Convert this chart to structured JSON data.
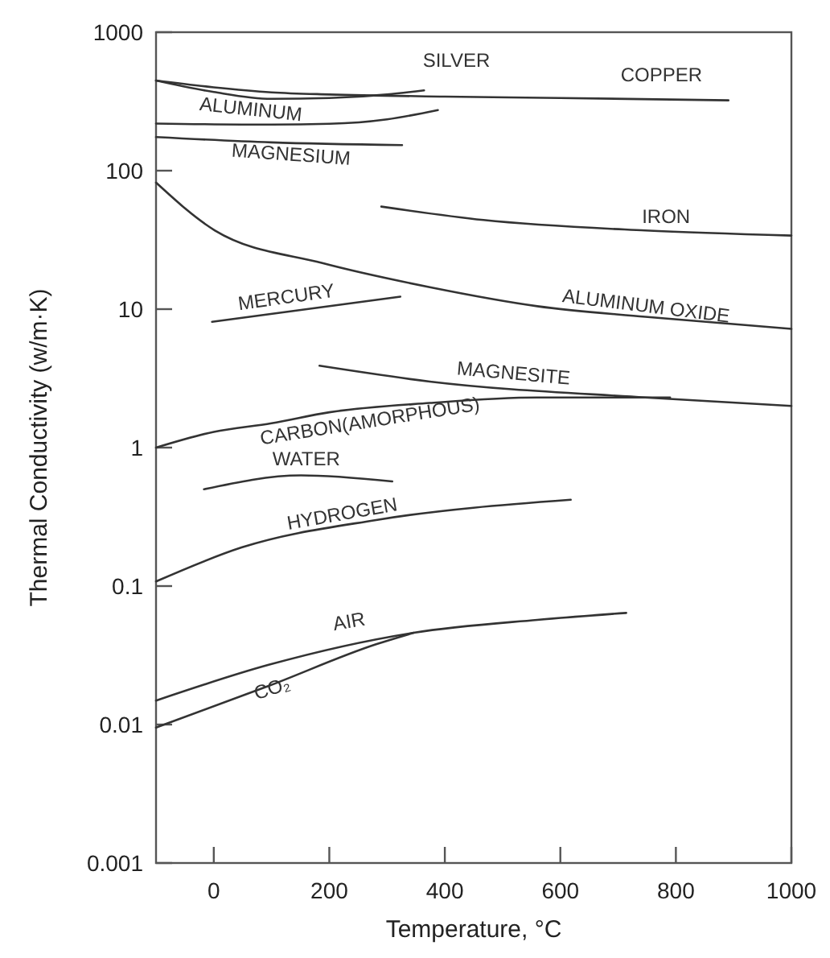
{
  "chart_data": {
    "type": "line",
    "xlabel": "Temperature, °C",
    "ylabel": "Thermal Conductivity (w/m·K)",
    "log": "y",
    "xlim": [
      -100,
      1000
    ],
    "xticks": [
      0,
      200,
      400,
      600,
      800,
      1000
    ],
    "ylim": [
      0.001,
      1000
    ],
    "yticks": [
      0.001,
      0.01,
      0.1,
      1,
      10,
      100,
      1000
    ],
    "grid": false,
    "marker": "none",
    "line_style": "solid",
    "series": [
      {
        "name": "SILVER",
        "color": "#333333",
        "x": [
          -100,
          0,
          100,
          200,
          300,
          364
        ],
        "values": [
          448,
          370,
          330,
          335,
          355,
          380
        ]
      },
      {
        "name": "COPPER",
        "color": "#333333",
        "x": [
          -100,
          0,
          100,
          200,
          400,
          600,
          891
        ],
        "values": [
          448,
          400,
          368,
          355,
          343,
          335,
          322
        ]
      },
      {
        "name": "ALUMINUM",
        "color": "#333333",
        "x": [
          -100,
          100,
          200,
          300,
          388
        ],
        "values": [
          219,
          215,
          218,
          235,
          274
        ]
      },
      {
        "name": "MAGNESIUM",
        "color": "#333333",
        "x": [
          -100,
          100,
          326
        ],
        "values": [
          175,
          160,
          153
        ]
      },
      {
        "name": "IRON",
        "color": "#333333",
        "x": [
          290,
          467,
          747,
          1000
        ],
        "values": [
          55,
          44,
          37,
          34
        ]
      },
      {
        "name": "ALUMINUM OXIDE",
        "color": "#333333",
        "x": [
          -100,
          2,
          188,
          374,
          560,
          747,
          1000
        ],
        "values": [
          82,
          37,
          21.5,
          14.4,
          10.5,
          8.8,
          7.2
        ]
      },
      {
        "name": "MERCURY",
        "color": "#333333",
        "x": [
          -3,
          323
        ],
        "values": [
          8.1,
          12.3
        ]
      },
      {
        "name": "MAGNESITE",
        "color": "#333333",
        "x": [
          183,
          374,
          747,
          1000
        ],
        "values": [
          3.9,
          3.0,
          2.3,
          2.0
        ]
      },
      {
        "name": "CARBON(AMORPHOUS)",
        "color": "#333333",
        "x": [
          -100,
          0,
          100,
          200,
          374,
          560,
          790
        ],
        "values": [
          1.0,
          1.3,
          1.5,
          1.8,
          2.1,
          2.3,
          2.3
        ]
      },
      {
        "name": "WATER",
        "color": "#333333",
        "x": [
          -17,
          151,
          309
        ],
        "values": [
          0.5,
          0.63,
          0.57
        ]
      },
      {
        "name": "HYDROGEN",
        "color": "#333333",
        "x": [
          -100,
          48,
          281,
          618
        ],
        "values": [
          0.108,
          0.19,
          0.3,
          0.42
        ]
      },
      {
        "name": "AIR",
        "color": "#333333",
        "x": [
          -100,
          95,
          346,
          560,
          714
        ],
        "values": [
          0.0149,
          0.027,
          0.046,
          0.057,
          0.064
        ]
      },
      {
        "name": "CO₂",
        "color": "#333333",
        "x": [
          -100,
          95,
          281,
          346
        ],
        "values": [
          0.0095,
          0.019,
          0.038,
          0.046
        ]
      }
    ]
  }
}
